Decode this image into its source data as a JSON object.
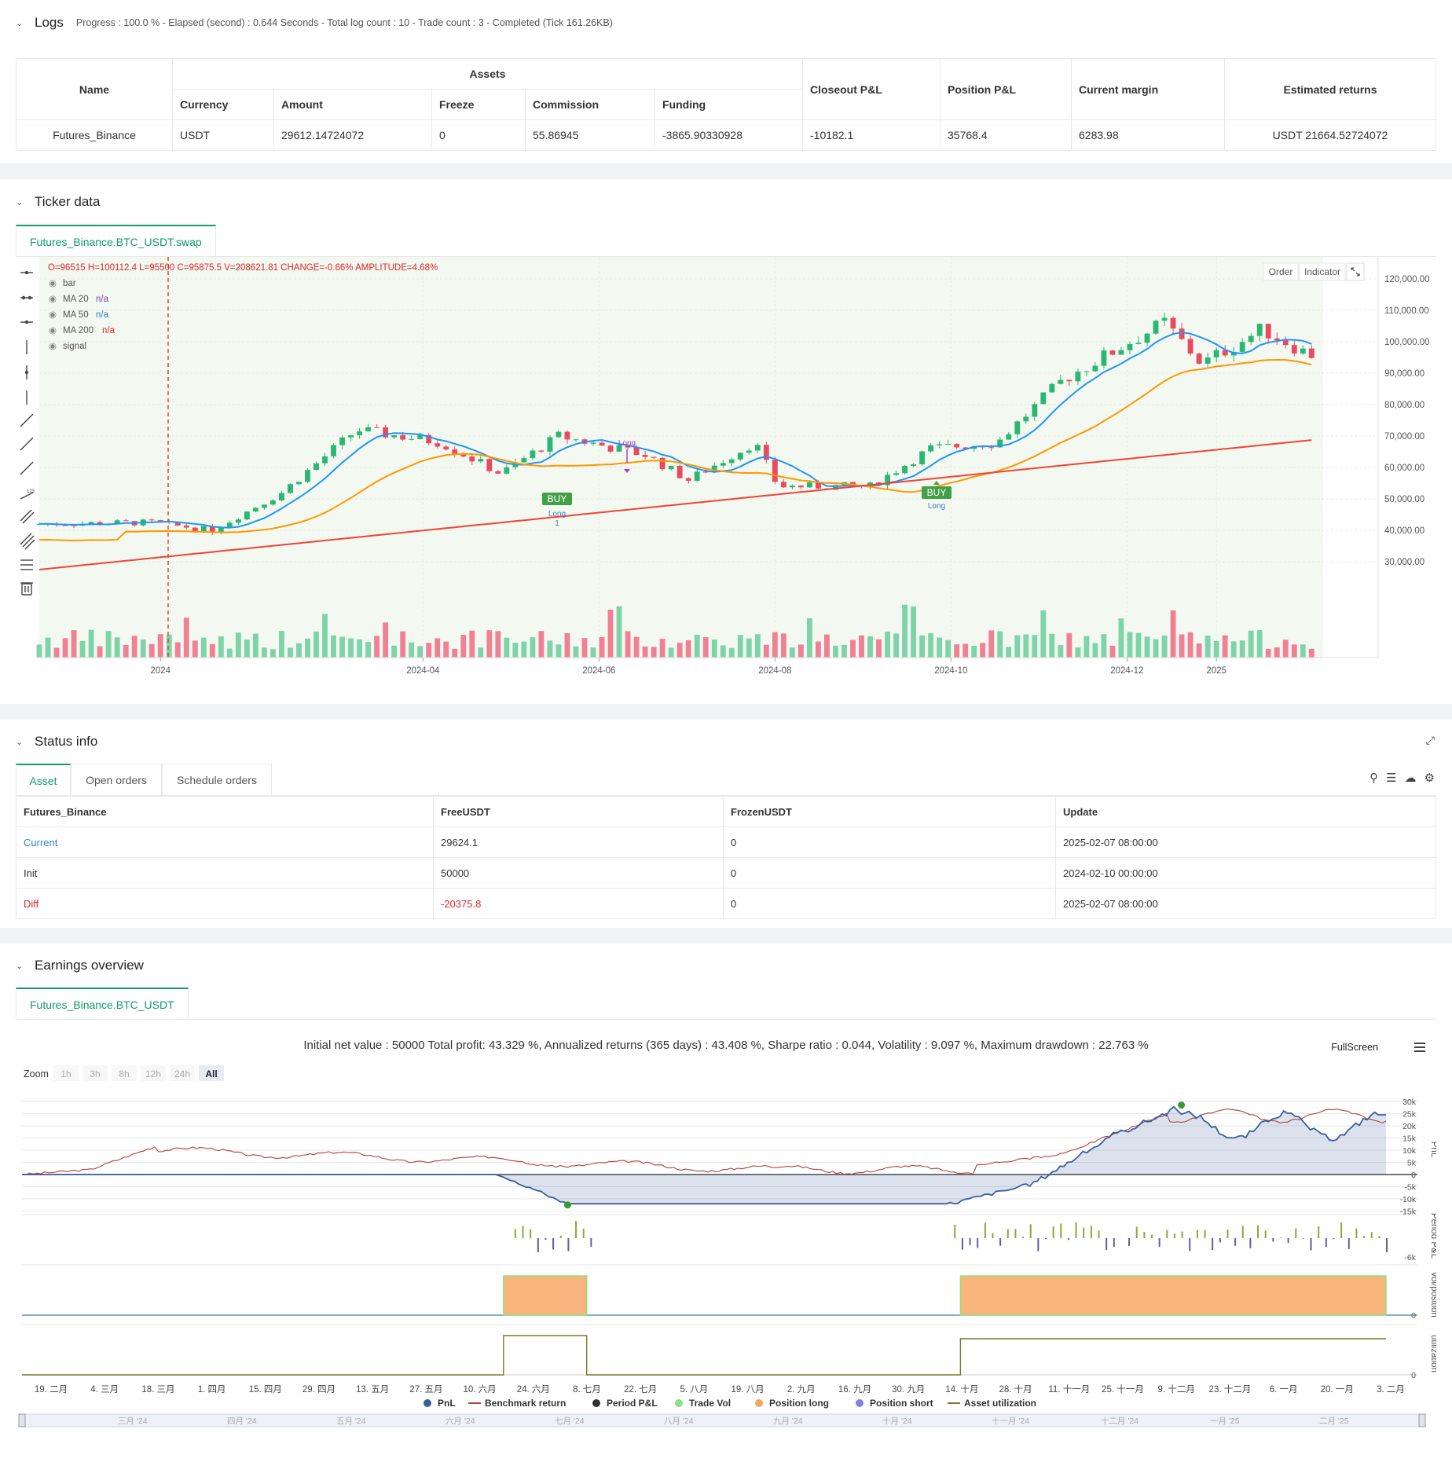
{
  "logs": {
    "title": "Logs",
    "status_line": "Progress : 100.0 % - Elapsed (second) : 0.644  Seconds - Total log count : 10 - Trade count : 3 - Completed (Tick 161.26KB)",
    "table": {
      "name_header": "Name",
      "assets_header": "Assets",
      "sub_headers": [
        "Currency",
        "Amount",
        "Freeze",
        "Commission",
        "Funding"
      ],
      "right_headers": [
        "Closeout P&L",
        "Position P&L",
        "Current margin",
        "Estimated returns"
      ],
      "row": [
        "Futures_Binance",
        "USDT",
        "29612.14724072",
        "0",
        "55.86945",
        "-3865.90330928",
        "-10182.1",
        "35768.4",
        "6283.98",
        "USDT 21664.52724072"
      ]
    }
  },
  "ticker": {
    "title": "Ticker data",
    "tab": "Futures_Binance.BTC_USDT.swap",
    "ohlc_line": "O=96515 H=100112.4 L=95500 C=95875.5 V=208621.81 CHANGE=-0.66% AMPLITUDE=4.68%",
    "legend": [
      {
        "label": "bar",
        "value": ""
      },
      {
        "label": "MA 20",
        "value": "n/a"
      },
      {
        "label": "MA 50",
        "value": "n/a"
      },
      {
        "label": "MA 200",
        "value": "n/a"
      },
      {
        "label": "signal",
        "value": ""
      }
    ],
    "buttons": [
      "Order",
      "Indicator"
    ],
    "buy_label": "BUY",
    "long_label": "Long",
    "one_label": "1"
  },
  "status": {
    "title": "Status info",
    "tabs": [
      "Asset",
      "Open orders",
      "Schedule orders"
    ],
    "headers": [
      "Futures_Binance",
      "FreeUSDT",
      "FrozenUSDT",
      "Update"
    ],
    "rows": [
      [
        "Current",
        "29624.1",
        "0",
        "2025-02-07 08:00:00"
      ],
      [
        "Init",
        "50000",
        "0",
        "2024-02-10 00:00:00"
      ],
      [
        "Diff",
        "-20375.8",
        "0",
        "2025-02-07 08:00:00"
      ]
    ]
  },
  "earnings": {
    "title": "Earnings overview",
    "tab": "Futures_Binance.BTC_USDT",
    "summary": "Initial net value : 50000 Total profit: 43.329 %, Annualized returns (365 days) : 43.408 %, Sharpe ratio : 0.044, Volatility : 9.097 %, Maximum drawdown : 22.763 %",
    "fullscreen": "FullScreen",
    "zoom_label": "Zoom",
    "zoom_options": [
      "1h",
      "3h",
      "8h",
      "12h",
      "24h",
      "All"
    ],
    "zoom_selected": "All",
    "axis_titles": [
      "PnL",
      "Period P&L",
      "vol/position",
      "utilization"
    ],
    "legend": [
      "PnL",
      "Benchmark return",
      "Period P&L",
      "Trade Vol",
      "Position long",
      "Position short",
      "Asset utilization"
    ],
    "legend_colors": [
      "#3a5f9c",
      "#b5403b",
      "#333333",
      "#90e080",
      "#f4a460",
      "#8080e0",
      "#7a7a2a"
    ]
  },
  "chart_data": [
    {
      "type": "candlestick",
      "title": "",
      "x_ticks": [
        "2024",
        "2024-04",
        "2024-06",
        "2024-08",
        "2024-10",
        "2024-12",
        "2025"
      ],
      "y_ticks": [
        "120,000.00",
        "110,000.00",
        "100,000.00",
        "90,000.00",
        "80,000.00",
        "70,000.00",
        "60,000.00",
        "50,000.00",
        "40,000.00",
        "30,000.00"
      ],
      "ylim": [
        25000,
        125000
      ],
      "close_approx": [
        {
          "x": "2023-11-20",
          "y": 42000
        },
        {
          "x": "2024-01-01",
          "y": 42500
        },
        {
          "x": "2024-01-22",
          "y": 40000
        },
        {
          "x": "2024-02-15",
          "y": 52000
        },
        {
          "x": "2024-03-12",
          "y": 72000
        },
        {
          "x": "2024-04-10",
          "y": 68000
        },
        {
          "x": "2024-05-01",
          "y": 58000
        },
        {
          "x": "2024-05-21",
          "y": 70000
        },
        {
          "x": "2024-06-20",
          "y": 64000
        },
        {
          "x": "2024-07-05",
          "y": 56000
        },
        {
          "x": "2024-07-28",
          "y": 68000
        },
        {
          "x": "2024-08-05",
          "y": 54000
        },
        {
          "x": "2024-09-06",
          "y": 54000
        },
        {
          "x": "2024-09-27",
          "y": 66000
        },
        {
          "x": "2024-10-20",
          "y": 68000
        },
        {
          "x": "2024-11-12",
          "y": 88000
        },
        {
          "x": "2024-12-05",
          "y": 100000
        },
        {
          "x": "2024-12-17",
          "y": 106000
        },
        {
          "x": "2024-12-30",
          "y": 93000
        },
        {
          "x": "2025-01-20",
          "y": 104000
        },
        {
          "x": "2025-02-05",
          "y": 96000
        }
      ],
      "series": [
        {
          "name": "MA 20",
          "color": "#2196f3"
        },
        {
          "name": "MA 50",
          "color": "#ff9800"
        },
        {
          "name": "MA 200",
          "color": "#f44336"
        }
      ],
      "signals": [
        {
          "label": "BUY",
          "x": "2024-06-12"
        },
        {
          "label": "BUY",
          "x": "2024-10-12"
        }
      ]
    },
    {
      "type": "line",
      "title": "",
      "x_ticks": [
        "19. 二月",
        "4. 三月",
        "18. 三月",
        "1. 四月",
        "15. 四月",
        "29. 四月",
        "13. 五月",
        "27. 五月",
        "10. 六月",
        "24. 六月",
        "8. 七月",
        "22. 七月",
        "5. 八月",
        "19. 八月",
        "2. 九月",
        "16. 九月",
        "30. 九月",
        "14. 十月",
        "28. 十月",
        "11. 十一月",
        "25. 十一月",
        "9. 十二月",
        "23. 十二月",
        "6. 一月",
        "20. 一月",
        "3. 二月"
      ],
      "y_ticks": [
        "30k",
        "25k",
        "20k",
        "15k",
        "10k",
        "5k",
        "0",
        "-5k",
        "-10k",
        "-15k"
      ],
      "ylim": [
        -15000,
        30000
      ],
      "period_pnl_tick": "-6k",
      "vol_tick": "0",
      "util_tick": "0",
      "navigator_labels": [
        "三月 '24",
        "四月 '24",
        "五月 '24",
        "六月 '24",
        "七月 '24",
        "八月 '24",
        "九月 '24",
        "十月 '24",
        "十一月 '24",
        "十二月 '24",
        "一月 '25",
        "二月 '25"
      ]
    }
  ]
}
